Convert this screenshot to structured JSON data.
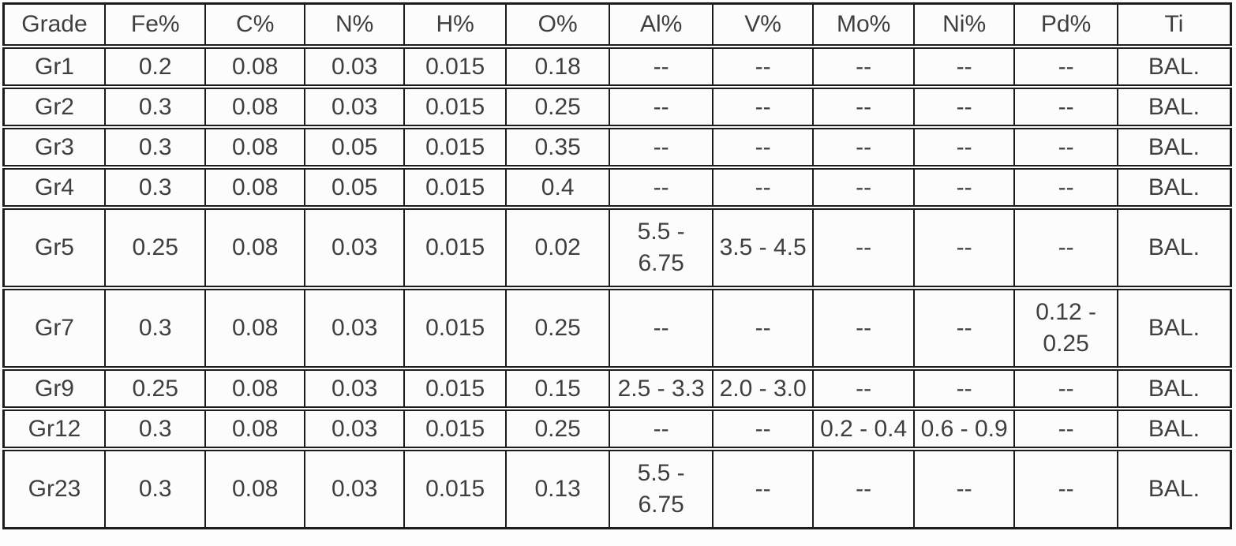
{
  "colors": {
    "border": "#1c1c1c",
    "text": "#3f3f3f",
    "background": "#fcfcfc"
  },
  "chart_data": {
    "type": "table",
    "columns": [
      "Grade",
      "Fe%",
      "C%",
      "N%",
      "H%",
      "O%",
      "Al%",
      "V%",
      "Mo%",
      "Ni%",
      "Pd%",
      "Ti"
    ],
    "rows": [
      [
        "Gr1",
        "0.2",
        "0.08",
        "0.03",
        "0.015",
        "0.18",
        "--",
        "--",
        "--",
        "--",
        "--",
        "BAL."
      ],
      [
        "Gr2",
        "0.3",
        "0.08",
        "0.03",
        "0.015",
        "0.25",
        "--",
        "--",
        "--",
        "--",
        "--",
        "BAL."
      ],
      [
        "Gr3",
        "0.3",
        "0.08",
        "0.05",
        "0.015",
        "0.35",
        "--",
        "--",
        "--",
        "--",
        "--",
        "BAL."
      ],
      [
        "Gr4",
        "0.3",
        "0.08",
        "0.05",
        "0.015",
        "0.4",
        "--",
        "--",
        "--",
        "--",
        "--",
        "BAL."
      ],
      [
        "Gr5",
        "0.25",
        "0.08",
        "0.03",
        "0.015",
        "0.02",
        "5.5 - 6.75",
        "3.5 - 4.5",
        "--",
        "--",
        "--",
        "BAL."
      ],
      [
        "Gr7",
        "0.3",
        "0.08",
        "0.03",
        "0.015",
        "0.25",
        "--",
        "--",
        "--",
        "--",
        "0.12 - 0.25",
        "BAL."
      ],
      [
        "Gr9",
        "0.25",
        "0.08",
        "0.03",
        "0.015",
        "0.15",
        "2.5 - 3.3",
        "2.0 - 3.0",
        "--",
        "--",
        "--",
        "BAL."
      ],
      [
        "Gr12",
        "0.3",
        "0.08",
        "0.03",
        "0.015",
        "0.25",
        "--",
        "--",
        "0.2 - 0.4",
        "0.6 - 0.9",
        "--",
        "BAL."
      ],
      [
        "Gr23",
        "0.3",
        "0.08",
        "0.03",
        "0.015",
        "0.13",
        "5.5 - 6.75",
        "--",
        "--",
        "--",
        "--",
        "BAL."
      ]
    ]
  }
}
